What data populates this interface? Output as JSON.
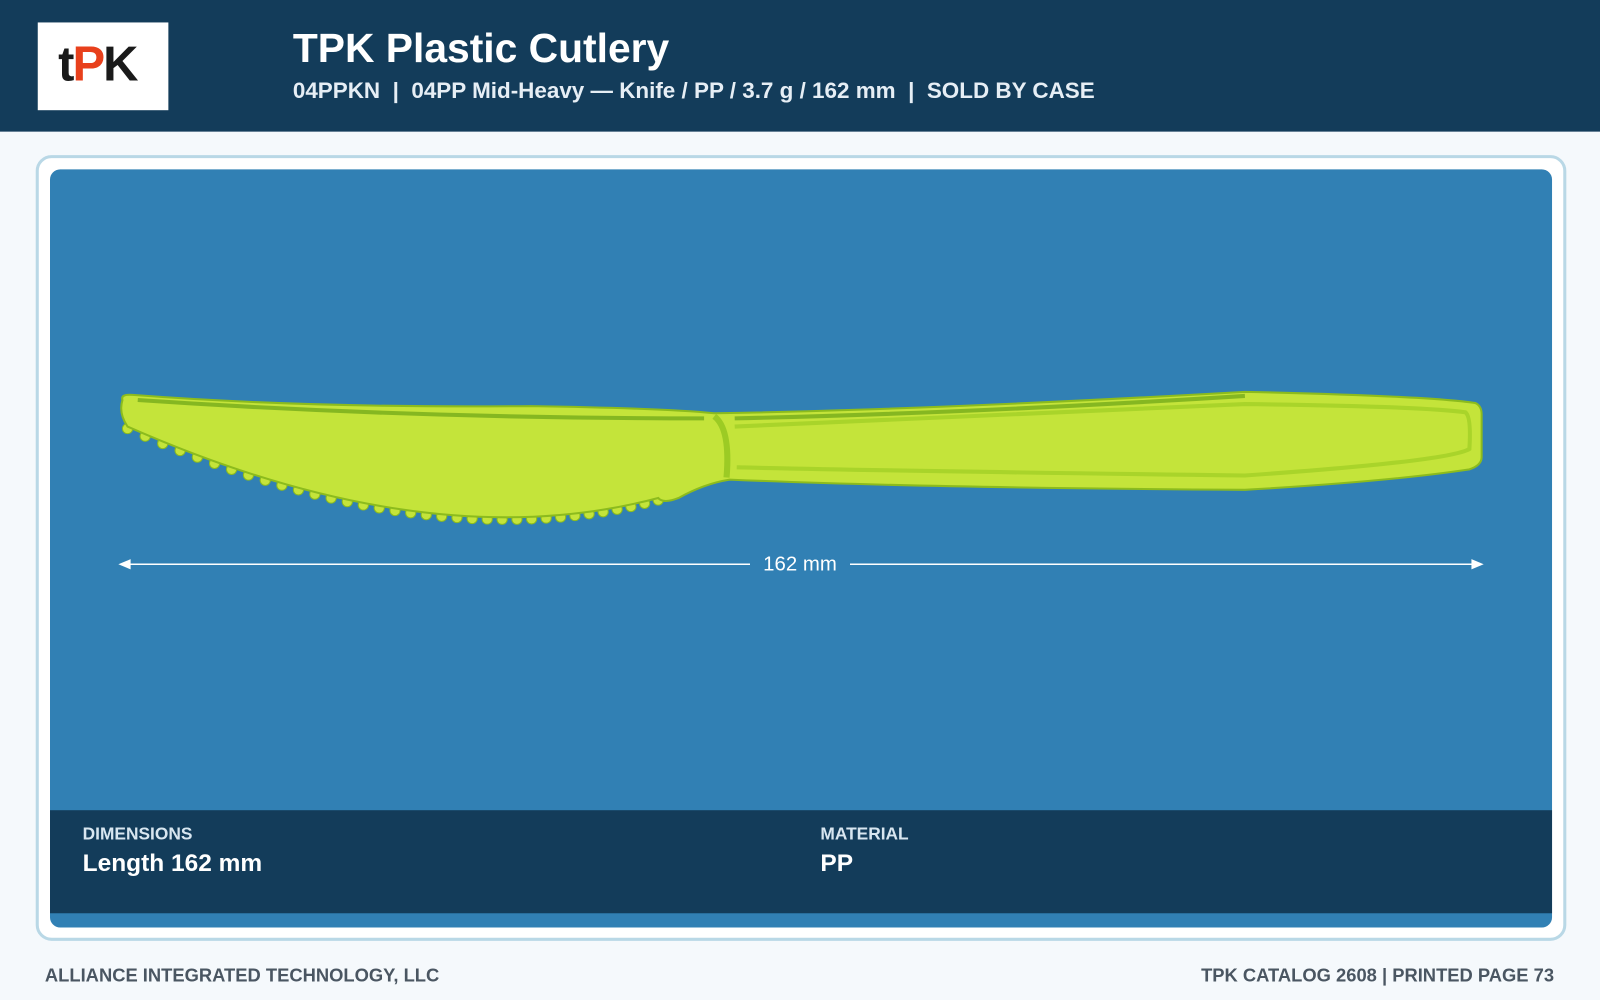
{
  "logo": {
    "parts": [
      "t",
      "P",
      "K"
    ]
  },
  "header": {
    "title": "TPK Plastic Cutlery",
    "subtitle": "04PPKN  |  04PP Mid-Heavy — Knife / PP / 3.7 g / 162 mm  |  SOLD BY CASE"
  },
  "product": {
    "dimension_label": "162 mm"
  },
  "specs": [
    {
      "label": "DIMENSIONS",
      "value": "Length 162 mm"
    },
    {
      "label": "MATERIAL",
      "value": "PP"
    }
  ],
  "footer": {
    "left": "ALLIANCE INTEGRATED TECHNOLOGY, LLC",
    "right": "TPK CATALOG 2608 | PRINTED PAGE 73"
  }
}
